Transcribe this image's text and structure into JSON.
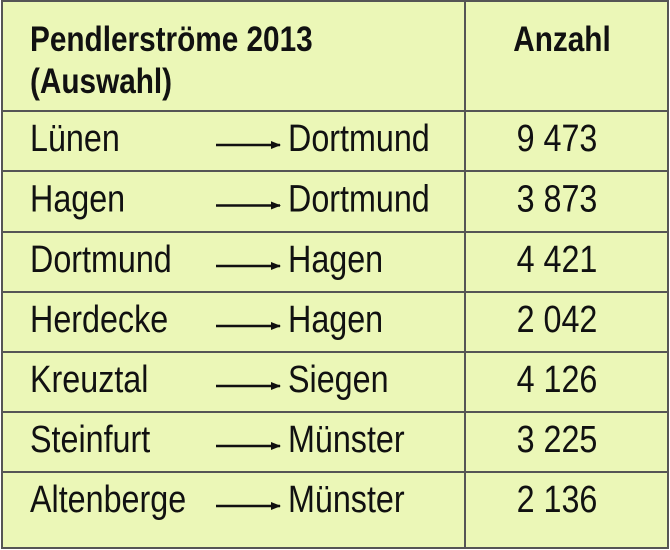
{
  "header": {
    "title": "Pendlerströme 2013",
    "subtitle": "(Auswahl)",
    "count_label": "Anzahl"
  },
  "table": {
    "rows": [
      [
        "Lünen",
        "Dortmund",
        "9 473"
      ],
      [
        "Hagen",
        "Dortmund",
        "3 873"
      ],
      [
        "Dortmund",
        "Hagen",
        "4 421"
      ],
      [
        "Herdecke",
        "Hagen",
        "2 042"
      ],
      [
        "Kreuztal",
        "Siegen",
        "4 126"
      ],
      [
        "Steinfurt",
        "Münster",
        "3 225"
      ],
      [
        "Altenberge",
        "Münster",
        "2 136"
      ]
    ]
  }
}
